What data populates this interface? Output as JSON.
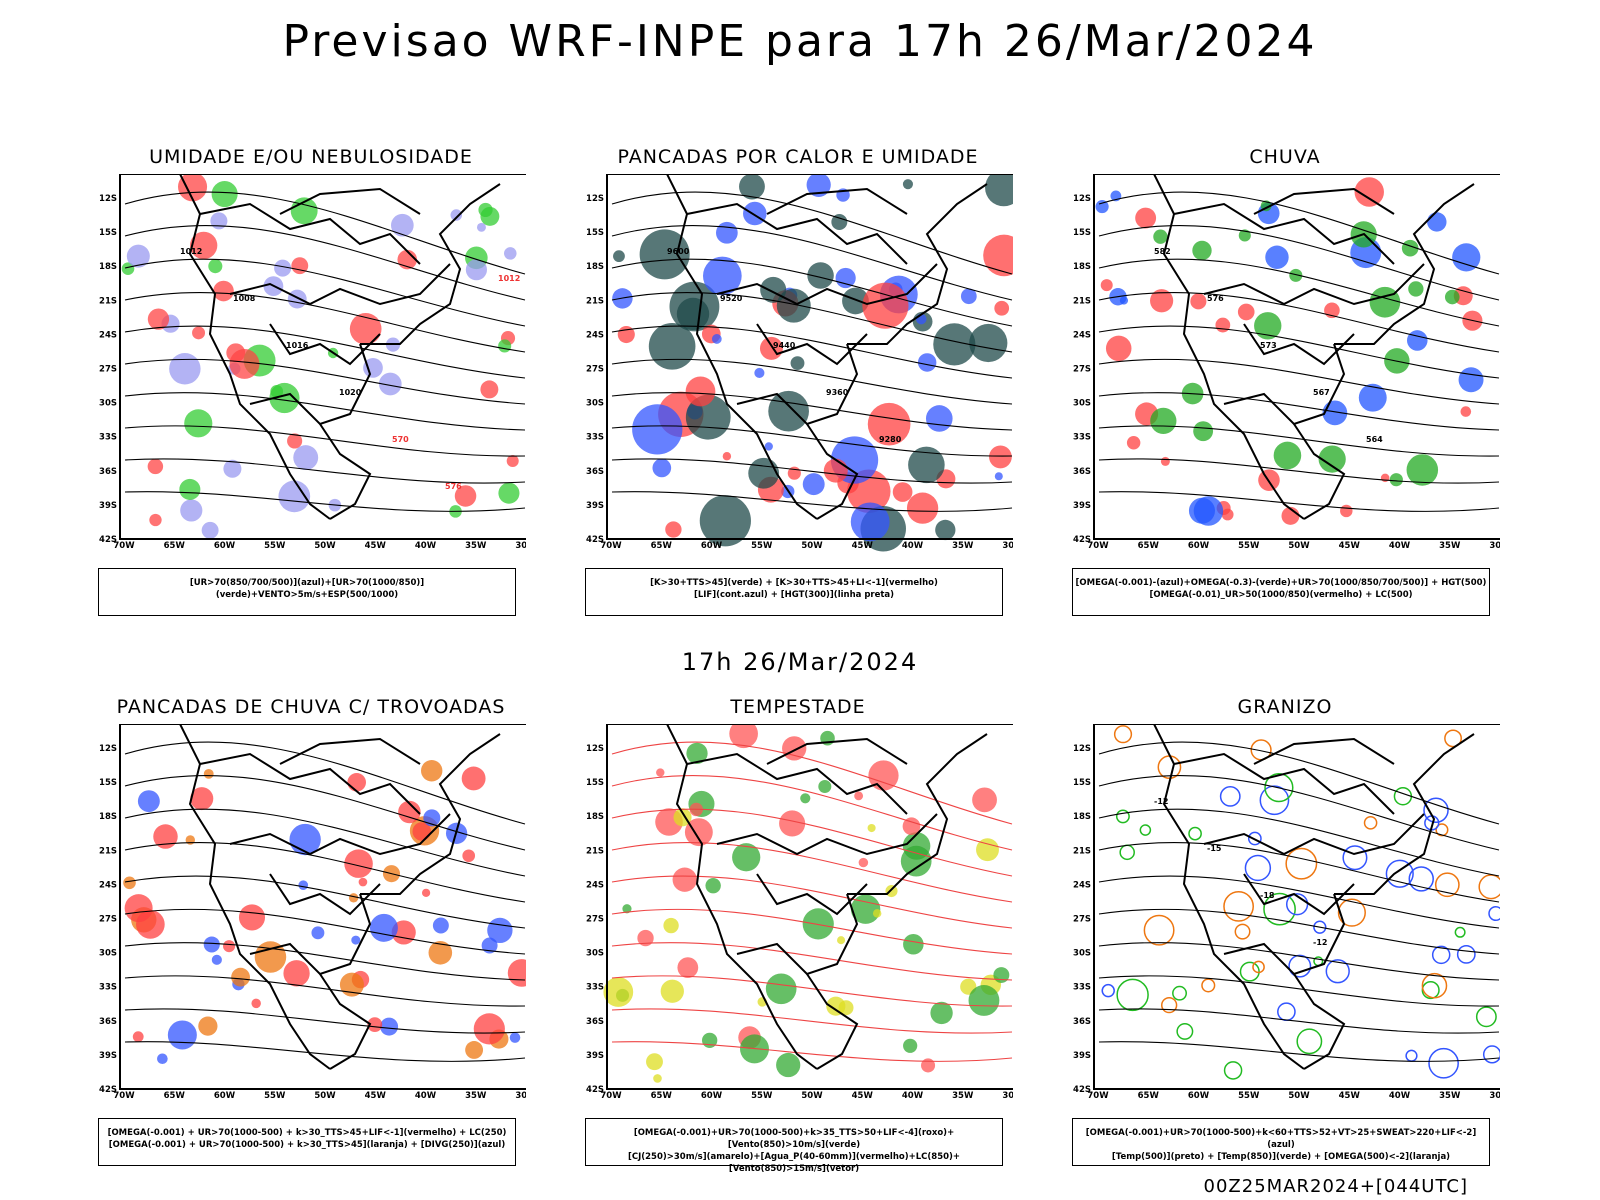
{
  "header": {
    "title": "Previsao WRF-INPE  para 17h 26/Mar/2024"
  },
  "middle": {
    "label": "17h 26/Mar/2024"
  },
  "footer": {
    "run": "00Z25MAR2024+[044UTC]"
  },
  "axes": {
    "lat_labels": [
      "12S",
      "15S",
      "18S",
      "21S",
      "24S",
      "27S",
      "30S",
      "33S",
      "36S",
      "39S",
      "42S"
    ],
    "lon_labels": [
      "70W",
      "65W",
      "60W",
      "55W",
      "50W",
      "45W",
      "40W",
      "35W",
      "30W"
    ]
  },
  "panels": [
    {
      "title": "UMIDADE E/OU NEBULOSIDADE",
      "legend": [
        "[UR>70(850/700/500)](azul)+[UR>70(1000/850)](verde)+VENTO>5m/s+ESP(500/1000)"
      ],
      "labels": [
        "1012",
        "1008",
        "1016",
        "1020",
        "570",
        "576",
        "1012"
      ]
    },
    {
      "title": "PANCADAS POR CALOR E UMIDADE",
      "legend": [
        "[K>30+TTS>45](verde) + [K>30+TTS>45+LI<-1](vermelho)",
        "[LIF](cont.azul) + [HGT(300)](linha preta)"
      ],
      "labels": [
        "9600",
        "9520",
        "9440",
        "9360",
        "9280"
      ]
    },
    {
      "title": "CHUVA",
      "legend": [
        "[OMEGA(-0.001)-(azul)+OMEGA(-0.3)-(verde)+UR>70(1000/850/700/500)] + HGT(500)",
        "[OMEGA(-0.01)_UR>50(1000/850)(vermelho) + LC(500)"
      ],
      "labels": [
        "582",
        "576",
        "573",
        "567",
        "564"
      ]
    },
    {
      "title": "PANCADAS DE CHUVA C/ TROVOADAS",
      "legend": [
        "[OMEGA(-0.001) + UR>70(1000-500) + k>30_TTS>45+LIF<-1](vermelho) + LC(250)",
        "[OMEGA(-0.001) + UR>70(1000-500) + k>30_TTS>45](laranja) + [DIVG(250)](azul)"
      ],
      "labels": []
    },
    {
      "title": "TEMPESTADE",
      "legend": [
        "[OMEGA(-0.001)+UR>70(1000-500)+k>35_TTS>50+LIF<-4](roxo)+[Vento(850)>10m/s](verde)",
        "[CJ(250)>30m/s](amarelo)+[Agua_P(40-60mm)](vermelho)+LC(850)+[Vento(850)>15m/s](vetor)"
      ],
      "labels": []
    },
    {
      "title": "GRANIZO",
      "legend": [
        "[OMEGA(-0.001)+UR>70(1000-500)+k<60+TTS>52+VT>25+SWEAT>220+LIF<-2](azul)",
        "[Temp(500)](preto) + [Temp(850)](verde) + [OMEGA(500)<-2](laranja)"
      ],
      "labels": [
        "-12",
        "-15",
        "-18",
        "-12"
      ]
    }
  ]
}
